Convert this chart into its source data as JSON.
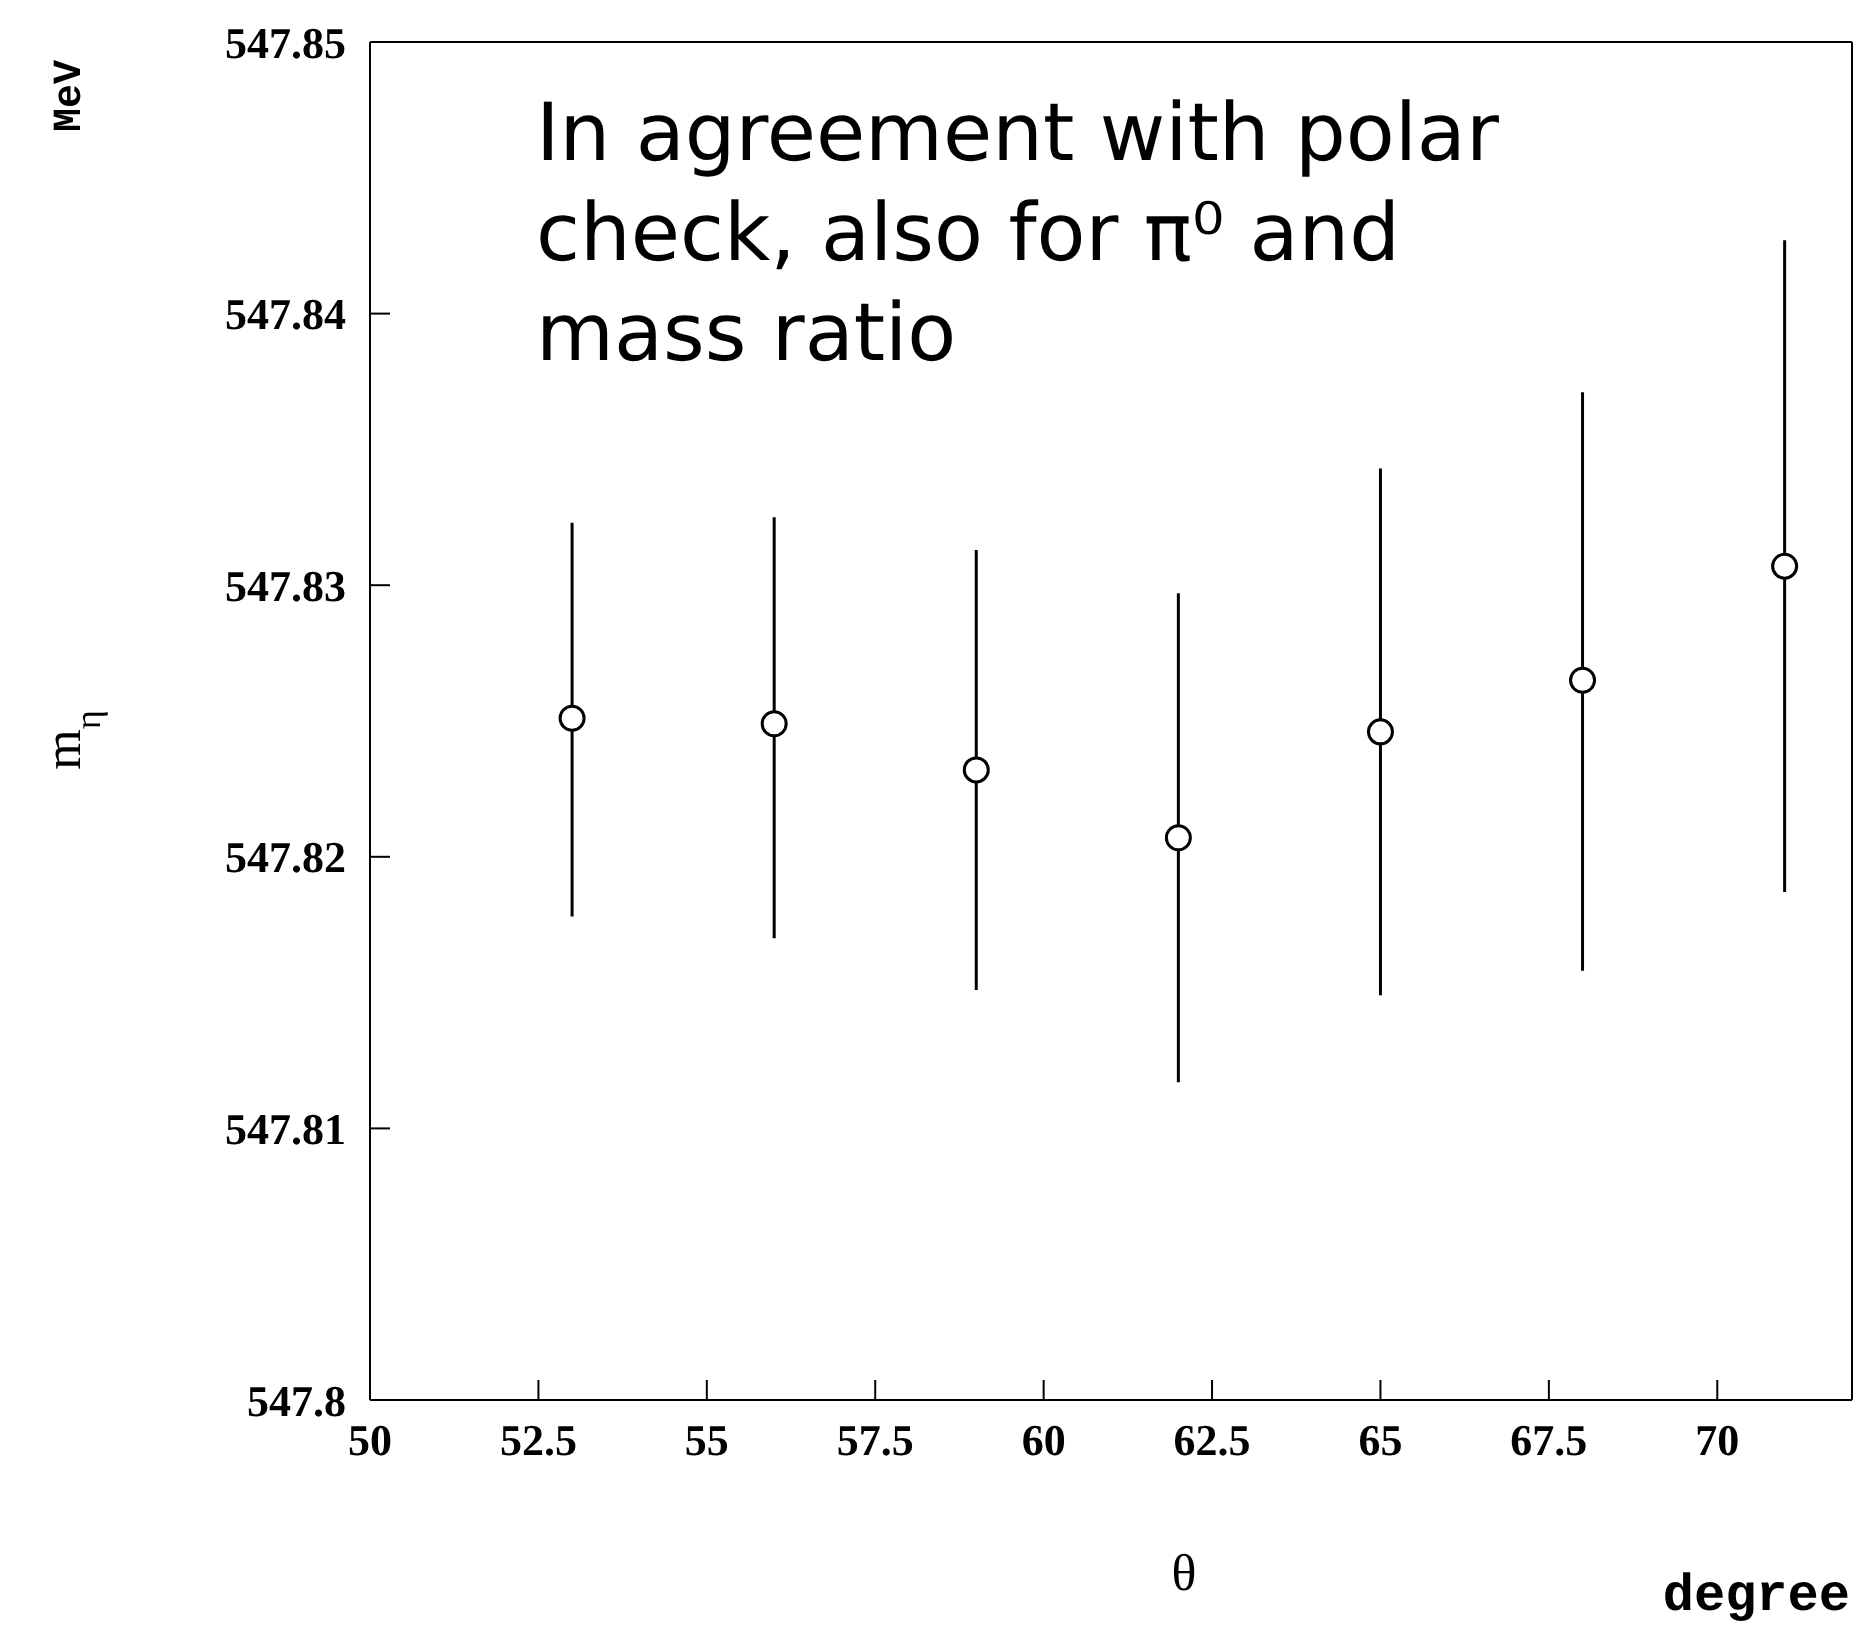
{
  "chart_data": {
    "type": "scatter",
    "xlabel": "θ",
    "ylabel": "m$_{η}$",
    "annotations": [
      "In agreement with polar check, also for π⁰ and mass ratio",
      "MeV",
      "degree"
    ],
    "x": [
      53,
      56,
      59,
      62,
      65,
      68,
      71
    ],
    "values": [
      547.8251,
      547.8249,
      547.8232,
      547.8207,
      547.8246,
      547.8265,
      547.8307
    ],
    "errors": [
      [
        547.8178,
        547.8323
      ],
      [
        547.817,
        547.8325
      ],
      [
        547.8151,
        547.8313
      ],
      [
        547.8117,
        547.8297
      ],
      [
        547.8149,
        547.8343
      ],
      [
        547.8158,
        547.8371
      ],
      [
        547.8187,
        547.8427
      ]
    ],
    "color": "#000000",
    "marker": "circle",
    "xlim": [
      50,
      72
    ],
    "xticks": [
      50,
      52.5,
      55,
      57.5,
      60,
      62.5,
      65,
      67.5,
      70
    ],
    "ylim": [
      547.8,
      547.85
    ],
    "yticks": [
      547.8,
      547.81,
      547.82,
      547.83,
      547.84,
      547.85
    ]
  }
}
